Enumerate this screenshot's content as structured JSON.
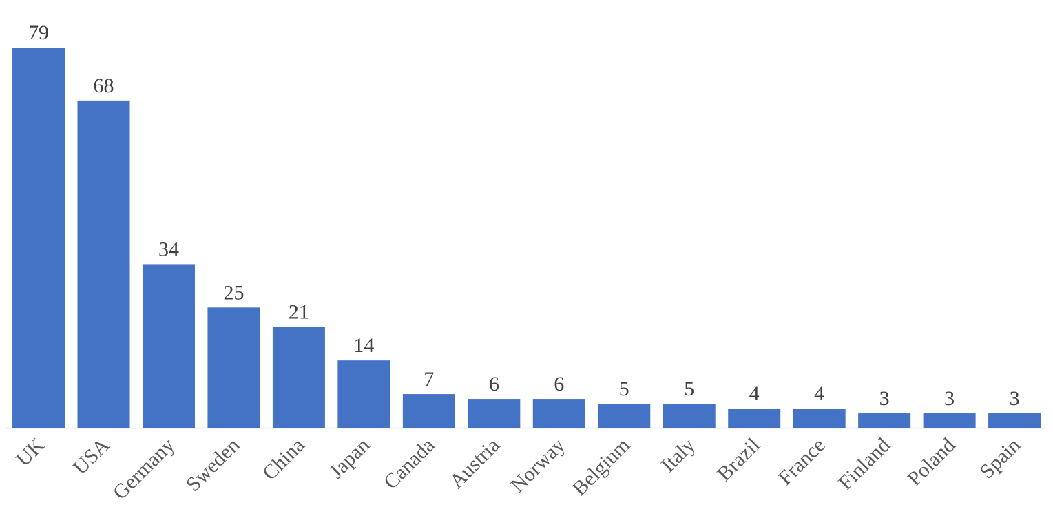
{
  "chart_data": {
    "type": "bar",
    "categories": [
      "UK",
      "USA",
      "Germany",
      "Sweden",
      "China",
      "Japan",
      "Canada",
      "Austria",
      "Norway",
      "Belgium",
      "Italy",
      "Brazil",
      "France",
      "Finland",
      "Poland",
      "Spain"
    ],
    "values": [
      79,
      68,
      34,
      25,
      21,
      14,
      7,
      6,
      6,
      5,
      5,
      4,
      4,
      3,
      3,
      3
    ],
    "color": "#4472c4"
  }
}
